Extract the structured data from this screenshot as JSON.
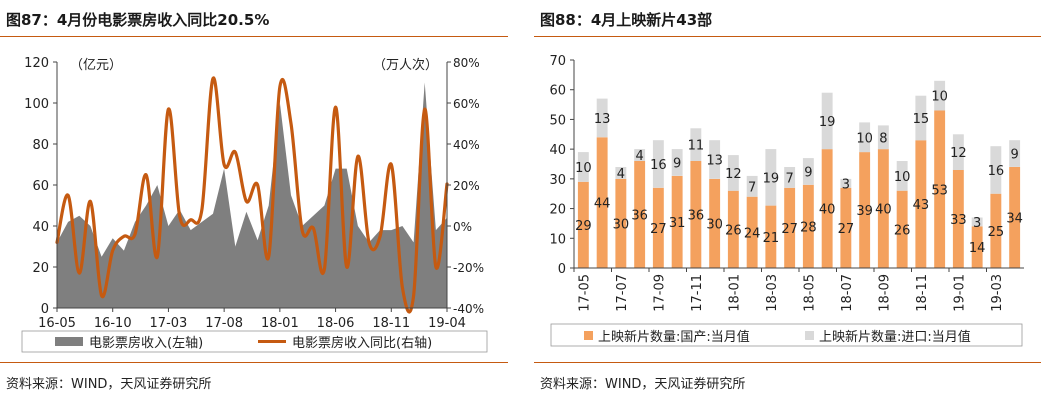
{
  "panels": [
    {
      "title": "图87：4月份电影票房收入同比20.5%",
      "source": "资料来源：WIND，天风证券研究所"
    },
    {
      "title": "图88：4月上映新片43部",
      "source": "资料来源：WIND，天风证券研究所"
    }
  ],
  "chart_data": [
    {
      "type": "area",
      "title": "",
      "left_unit": "（亿元）",
      "right_unit": "（万人次）",
      "y_left": {
        "min": 0,
        "max": 120,
        "ticks": [
          "0",
          "20",
          "40",
          "60",
          "80",
          "100",
          "120"
        ]
      },
      "y_right": {
        "min": -40,
        "max": 80,
        "ticks": [
          "-40%",
          "-20%",
          "0%",
          "20%",
          "40%",
          "60%",
          "80%"
        ]
      },
      "x_tick_labels": [
        "16-05",
        "16-10",
        "17-03",
        "17-08",
        "18-01",
        "18-06",
        "18-11",
        "19-04"
      ],
      "x_tick_index": [
        0,
        5,
        10,
        15,
        20,
        25,
        30,
        35
      ],
      "colors": {
        "area": "#7f7f7f",
        "line": "#c55a11"
      },
      "legend_position": "bottom",
      "series": [
        {
          "name": "电影票房收入(左轴)",
          "axis": "left",
          "kind": "area",
          "values": [
            32,
            42,
            45,
            40,
            25,
            34,
            28,
            42,
            50,
            60,
            40,
            48,
            38,
            42,
            46,
            68,
            30,
            47,
            33,
            50,
            100,
            55,
            40,
            45,
            50,
            68,
            68,
            40,
            32,
            38,
            38,
            40,
            32,
            110,
            38,
            44
          ]
        },
        {
          "name": "电影票房收入同比(右轴)",
          "axis": "right",
          "kind": "line",
          "values": [
            -8,
            15,
            -23,
            12,
            -34,
            -12,
            -5,
            -4,
            25,
            -15,
            57,
            5,
            3,
            8,
            72,
            30,
            36,
            12,
            20,
            -15,
            68,
            50,
            -2,
            -1,
            -21,
            58,
            -20,
            34,
            -8,
            -5,
            30,
            -30,
            -34,
            57,
            -20,
            20.5
          ]
        }
      ]
    },
    {
      "type": "bar",
      "stacked": true,
      "title": "",
      "y": {
        "min": 0,
        "max": 70,
        "ticks": [
          "0",
          "10",
          "20",
          "30",
          "40",
          "50",
          "60",
          "70"
        ]
      },
      "categories": [
        "17-05",
        "17-06",
        "17-07",
        "17-08",
        "17-09",
        "17-10",
        "17-11",
        "17-12",
        "18-01",
        "18-02",
        "18-03",
        "18-04",
        "18-05",
        "18-06",
        "18-07",
        "18-08",
        "18-09",
        "18-10",
        "18-11",
        "18-12",
        "19-01",
        "19-02",
        "19-03",
        "19-04"
      ],
      "x_tick_labels": [
        "17-05",
        "17-07",
        "17-09",
        "17-11",
        "18-01",
        "18-03",
        "18-05",
        "18-07",
        "18-09",
        "18-11",
        "19-01",
        "19-03"
      ],
      "x_tick_index": [
        0,
        2,
        4,
        6,
        8,
        10,
        12,
        14,
        16,
        18,
        20,
        22
      ],
      "colors": {
        "domestic": "#f4a15e",
        "imported": "#d9d9d9"
      },
      "legend_position": "bottom",
      "series": [
        {
          "name": "上映新片数量:国产:当月值",
          "values": [
            29,
            44,
            30,
            36,
            27,
            31,
            36,
            30,
            26,
            24,
            21,
            27,
            28,
            40,
            27,
            39,
            40,
            26,
            43,
            53,
            33,
            14,
            25,
            34
          ]
        },
        {
          "name": "上映新片数量:进口:当月值",
          "values": [
            10,
            13,
            4,
            4,
            16,
            9,
            11,
            13,
            12,
            7,
            19,
            7,
            9,
            19,
            3,
            10,
            8,
            10,
            15,
            10,
            12,
            3,
            16,
            9
          ]
        }
      ]
    }
  ]
}
